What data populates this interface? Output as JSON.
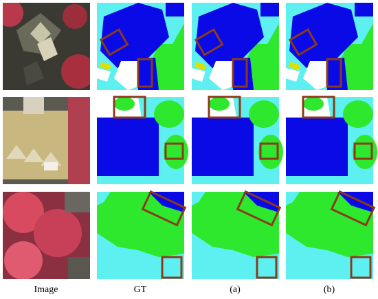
{
  "columns": [
    {
      "label": "Image"
    },
    {
      "label": "GT"
    },
    {
      "label": "(a)"
    },
    {
      "label": "(b)"
    }
  ]
}
